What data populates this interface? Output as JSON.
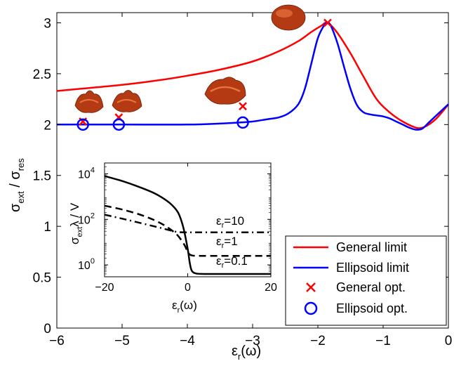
{
  "chart_data": [
    {
      "type": "line",
      "xlabel": {
        "main": "ε",
        "sub": "r",
        "tail": "(ω)"
      },
      "ylabel": {
        "a": "σ",
        "a_sub": "ext",
        "mid": " / σ",
        "b_sub": "res"
      },
      "xlim": [
        -6,
        0
      ],
      "ylim": [
        0,
        3.1
      ],
      "xticks": [
        -6,
        -5,
        -4,
        -3,
        -2,
        -1,
        0
      ],
      "xtick_labels": [
        "−6",
        "−5",
        "−4",
        "−3",
        "−2",
        "−1",
        "0"
      ],
      "yticks": [
        0,
        0.5,
        1,
        1.5,
        2,
        2.5,
        3
      ],
      "ytick_labels": [
        "0",
        "0.5",
        "1",
        "1.5",
        "2",
        "2.5",
        "3"
      ],
      "grid": false,
      "legend_position": "bottom-right",
      "series": [
        {
          "name": "General limit",
          "style": "line",
          "color": "#ff0000",
          "x": [
            -6,
            -5.5,
            -5,
            -4.5,
            -4,
            -3.5,
            -3,
            -2.6,
            -2.3,
            -2.1,
            -1.95,
            -1.85,
            -1.7,
            -1.5,
            -1.3,
            -1.1,
            -0.9,
            -0.7,
            -0.5,
            -0.4,
            -0.3,
            -0.2,
            -0.1,
            0
          ],
          "y": [
            2.33,
            2.36,
            2.39,
            2.43,
            2.48,
            2.54,
            2.62,
            2.72,
            2.82,
            2.91,
            2.97,
            3.0,
            2.9,
            2.7,
            2.47,
            2.25,
            2.12,
            2.03,
            1.97,
            1.97,
            2.0,
            2.05,
            2.12,
            2.2
          ]
        },
        {
          "name": "Ellipsoid limit",
          "style": "line",
          "color": "#0000ff",
          "x": [
            -6,
            -5,
            -4,
            -3.5,
            -3.2,
            -3,
            -2.8,
            -2.6,
            -2.45,
            -2.3,
            -2.2,
            -2.1,
            -2.0,
            -1.9,
            -1.85,
            -1.8,
            -1.7,
            -1.6,
            -1.5,
            -1.4,
            -1.3,
            -1.2,
            -1.1,
            -1.0,
            -0.9,
            -0.8,
            -0.7,
            -0.6,
            -0.5,
            -0.4,
            -0.3,
            -0.2,
            -0.1,
            0
          ],
          "y": [
            2.0,
            2.0,
            2.0,
            2.01,
            2.02,
            2.03,
            2.05,
            2.07,
            2.11,
            2.2,
            2.35,
            2.6,
            2.85,
            2.98,
            3.0,
            2.97,
            2.8,
            2.57,
            2.35,
            2.19,
            2.12,
            2.1,
            2.09,
            2.08,
            2.06,
            2.03,
            2.0,
            1.97,
            1.95,
            1.96,
            2.02,
            2.08,
            2.14,
            2.2
          ]
        },
        {
          "name": "General opt.",
          "style": "marker-x",
          "color": "#ff0000",
          "x": [
            -5.6,
            -5.05,
            -3.15,
            -1.85
          ],
          "y": [
            2.03,
            2.07,
            2.18,
            3.0
          ]
        },
        {
          "name": "Ellipsoid opt.",
          "style": "marker-o",
          "color": "#0000ff",
          "x": [
            -5.6,
            -5.05,
            -3.15
          ],
          "y": [
            2.0,
            2.0,
            2.02
          ]
        }
      ]
    },
    {
      "type": "line",
      "position": "inset",
      "xlabel": {
        "main": "ε",
        "sub": "r",
        "tail": "(ω)"
      },
      "ylabel": {
        "a": "σ",
        "a_sub": "ext",
        "tail": "λ / V"
      },
      "xlim": [
        -20,
        20
      ],
      "ylim": [
        0.3,
        30000
      ],
      "yscale": "log",
      "xticks": [
        -20,
        0,
        20
      ],
      "xtick_labels": [
        "−20",
        "0",
        "20"
      ],
      "yticks": [
        1,
        100,
        10000
      ],
      "ytick_labels": [
        {
          "base": "10",
          "exp": "0"
        },
        {
          "base": "10",
          "exp": "2"
        },
        {
          "base": "10",
          "exp": "4"
        }
      ],
      "grid": false,
      "series": [
        {
          "label": {
            "main": "ε",
            "sub": "r",
            "tail": "=0.1"
          },
          "style": "solid",
          "color": "#000000",
          "x": [
            -20,
            -16,
            -12,
            -8,
            -5,
            -3,
            -2,
            -1,
            0,
            0.5,
            1,
            2,
            4,
            8,
            20
          ],
          "y": [
            8000,
            5000,
            2800,
            1400,
            650,
            300,
            150,
            40,
            5,
            1.2,
            0.55,
            0.42,
            0.4,
            0.4,
            0.4
          ]
        },
        {
          "label": {
            "main": "ε",
            "sub": "r",
            "tail": "=1"
          },
          "style": "dash",
          "color": "#000000",
          "x": [
            -20,
            -15,
            -10,
            -6,
            -3,
            -1.5,
            -0.5,
            0,
            1,
            3,
            8,
            20
          ],
          "y": [
            400,
            250,
            130,
            60,
            25,
            12,
            6,
            3.5,
            2.6,
            2.5,
            2.5,
            2.5
          ]
        },
        {
          "label": {
            "main": "ε",
            "sub": "r",
            "tail": "=10"
          },
          "style": "dashdot",
          "color": "#000000",
          "x": [
            -20,
            -15,
            -10,
            -6,
            -3,
            -1,
            0,
            1,
            5,
            20
          ],
          "y": [
            160,
            100,
            60,
            40,
            29,
            27,
            27,
            27,
            27,
            27
          ]
        }
      ]
    }
  ],
  "legend_title": ""
}
